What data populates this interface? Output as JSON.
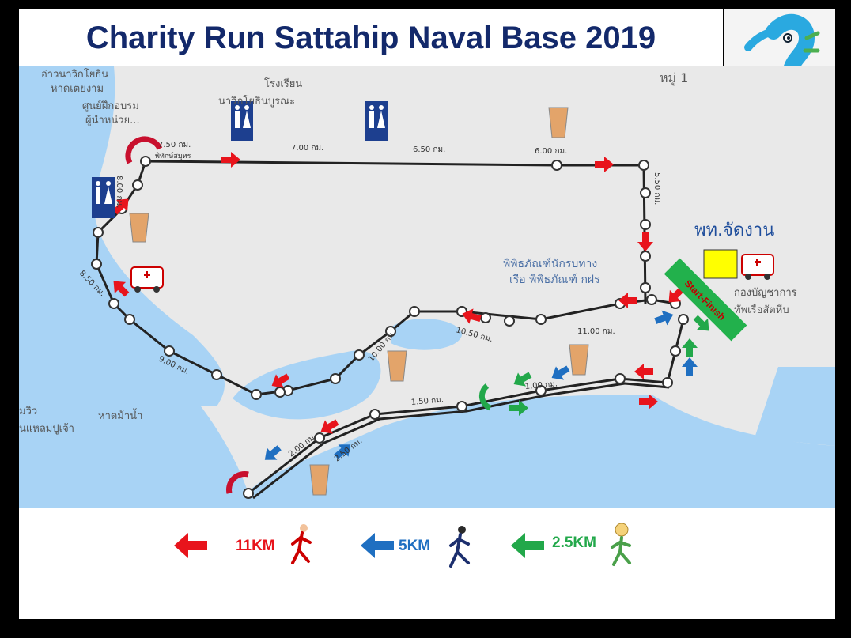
{
  "title": "Charity Run Sattahip Naval Base 2019",
  "map": {
    "place_labels": {
      "bay_name": "อ่าวนาวิกโยธิน",
      "beach_name": "หาดเตยงาม",
      "training_center": "ศูนย์ฝึกอบรม",
      "training_center_2": "ผู้นำหน่วย...",
      "school": "โรงเรียน",
      "school_2": "นาวิกโยธินบูรณะ",
      "village": "หมู่ 1",
      "museum": "พิพิธภัณฑ์นักรบทาง",
      "museum_2": "เรือ พิพิธภัณฑ์ กฝร",
      "headquarters": "กองบัญชาการ",
      "headquarters_2": "ทัพเรือสัตหีบ",
      "horse_beach": "หาดม้าน้ำ",
      "left_edge_1": "มวิว",
      "left_edge_2": "นแหลมปูเจ้า",
      "organizer": "พท.จัดงาน",
      "start_finish": "Start-Finish",
      "hidden_turn": "พิทักษ์สมุทร"
    },
    "km_markers": {
      "km_7_50": "7.50 กม.",
      "km_7_00": "7.00 กม.",
      "km_6_50": "6.50 กม.",
      "km_6_00": "6.00 กม.",
      "km_5_50": "5.50 กม.",
      "km_8_00": "8.00 กม.",
      "km_8_50": "8.50 กม.",
      "km_9_00": "9.00 กม.",
      "km_10_00": "10.00 กม.",
      "km_10_50": "10.50 กม.",
      "km_11_00": "11.00 กม.",
      "km_1_50": "1.50 กม.",
      "km_1_00": "1.00 กม.",
      "km_2_00": "2.00 กม.",
      "km_2_50": "2.50 กม."
    },
    "colors": {
      "sea": "#a8d3f5",
      "land": "#e9e9e9",
      "route": "#222222",
      "checkpoint_fill": "#ffffff",
      "arrow_11km": "#e8141c",
      "arrow_5km": "#1f6fc1",
      "arrow_2_5km": "#22a84a",
      "toilet_sign": "#1d3f8f",
      "start_finish_banner": "#22b14c",
      "organizer_box": "#ffff00"
    },
    "icons": [
      "toilet-sign-icon",
      "drink-cup-icon",
      "ambulance-icon",
      "u-turn-icon",
      "seahorse-logo-icon"
    ]
  },
  "legend": {
    "items": [
      {
        "label": "11KM",
        "color": "#e8141c",
        "icon": "runner-red-icon"
      },
      {
        "label": "5KM",
        "color": "#1f6fc1",
        "icon": "runner-blue-icon"
      },
      {
        "label": "2.5KM",
        "color": "#22a84a",
        "icon": "child-runner-icon"
      }
    ]
  }
}
